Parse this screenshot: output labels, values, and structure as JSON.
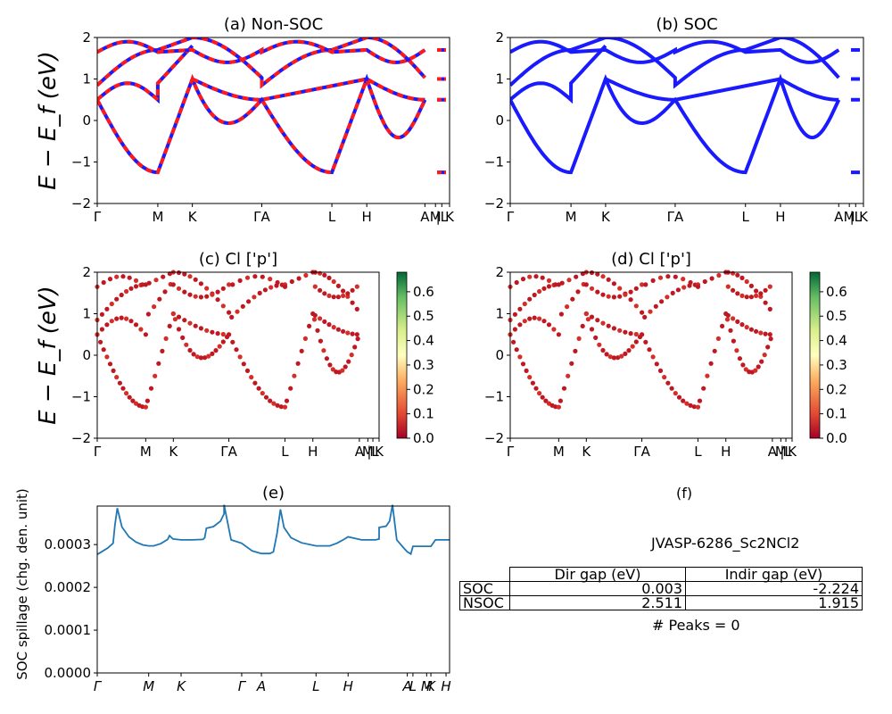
{
  "chart_data": [
    {
      "id": "a",
      "type": "line",
      "title": "(a) Non-SOC",
      "ylabel": "E − E_f (eV)",
      "ylim": [
        -2,
        2
      ],
      "yticks": [
        "2",
        "1",
        "0",
        "−1",
        "−2"
      ],
      "kpath": [
        {
          "label": "Γ",
          "x": 0.0
        },
        {
          "label": "M",
          "x": 0.172
        },
        {
          "label": "K",
          "x": 0.27
        },
        {
          "label": "ΓA",
          "x": 0.467
        },
        {
          "label": "L",
          "x": 0.666
        },
        {
          "label": "H",
          "x": 0.765
        },
        {
          "label": "A",
          "x": 0.93
        },
        {
          "label": "M",
          "x": 0.96
        },
        {
          "label": "|L",
          "x": 0.978
        },
        {
          "label": "K",
          "x": 1.0
        }
      ],
      "series": [
        {
          "color": "#1a1aff",
          "style": "solid"
        },
        {
          "color": "#ff1a1a",
          "style": "dashed"
        }
      ]
    },
    {
      "id": "b",
      "type": "line",
      "title": "(b) SOC",
      "ylim": [
        -2,
        2
      ],
      "yticks": [
        "2",
        "1",
        "0",
        "−1",
        "−2"
      ],
      "kpath": [
        {
          "label": "Γ",
          "x": 0.0
        },
        {
          "label": "M",
          "x": 0.172
        },
        {
          "label": "K",
          "x": 0.27
        },
        {
          "label": "ΓA",
          "x": 0.467
        },
        {
          "label": "L",
          "x": 0.666
        },
        {
          "label": "H",
          "x": 0.765
        },
        {
          "label": "A",
          "x": 0.93
        },
        {
          "label": "M",
          "x": 0.96
        },
        {
          "label": "|L",
          "x": 0.978
        },
        {
          "label": "K",
          "x": 1.0
        }
      ],
      "series": [
        {
          "color": "#1a1aff",
          "style": "solid"
        }
      ]
    },
    {
      "id": "c",
      "type": "scatter",
      "title": "(c)  Cl ['p']",
      "ylabel": "E − E_f (eV)",
      "ylim": [
        -2,
        2
      ],
      "yticks": [
        "2",
        "1",
        "0",
        "−1",
        "−2"
      ],
      "kpath": [
        {
          "label": "Γ",
          "x": 0.0
        },
        {
          "label": "M",
          "x": 0.172
        },
        {
          "label": "K",
          "x": 0.27
        },
        {
          "label": "ΓA",
          "x": 0.467
        },
        {
          "label": "L",
          "x": 0.666
        },
        {
          "label": "H",
          "x": 0.765
        },
        {
          "label": "A",
          "x": 0.93
        },
        {
          "label": "M",
          "x": 0.96
        },
        {
          "label": "|L",
          "x": 0.978
        },
        {
          "label": "K",
          "x": 1.0
        }
      ],
      "colorbar": {
        "ticks": [
          "0.6",
          "0.5",
          "0.4",
          "0.3",
          "0.2",
          "0.1",
          "0.0"
        ],
        "range": [
          0.0,
          0.68
        ]
      }
    },
    {
      "id": "d",
      "type": "scatter",
      "title": "(d) Cl ['p']",
      "ylim": [
        -2,
        2
      ],
      "yticks": [
        "2",
        "1",
        "0",
        "−1",
        "−2"
      ],
      "kpath": [
        {
          "label": "Γ",
          "x": 0.0
        },
        {
          "label": "M",
          "x": 0.172
        },
        {
          "label": "K",
          "x": 0.27
        },
        {
          "label": "ΓA",
          "x": 0.467
        },
        {
          "label": "L",
          "x": 0.666
        },
        {
          "label": "H",
          "x": 0.765
        },
        {
          "label": "A",
          "x": 0.93
        },
        {
          "label": "M",
          "x": 0.96
        },
        {
          "label": "|L",
          "x": 0.978
        },
        {
          "label": "K",
          "x": 1.0
        }
      ],
      "colorbar": {
        "ticks": [
          "0.6",
          "0.5",
          "0.4",
          "0.3",
          "0.2",
          "0.1",
          "0.0"
        ],
        "range": [
          0.0,
          0.68
        ]
      }
    },
    {
      "id": "e",
      "type": "line",
      "title": "(e)",
      "ylabel": "SOC spillage (chg. den. unit)",
      "ylim": [
        0.0,
        0.00039
      ],
      "yticks": [
        "0.0003",
        "0.0002",
        "0.0001",
        "0.0000"
      ],
      "kpath": [
        {
          "label": "Γ",
          "x": 0.0
        },
        {
          "label": "M",
          "x": 0.146
        },
        {
          "label": "K",
          "x": 0.238
        },
        {
          "label": "Γ",
          "x": 0.41
        },
        {
          "label": "A",
          "x": 0.466
        },
        {
          "label": "L",
          "x": 0.621
        },
        {
          "label": "H",
          "x": 0.712
        },
        {
          "label": "A",
          "x": 0.88
        },
        {
          "label": "L",
          "x": 0.896
        },
        {
          "label": "M",
          "x": 0.935
        },
        {
          "label": "K",
          "x": 0.947
        },
        {
          "label": "H",
          "x": 0.99
        }
      ],
      "series": [
        {
          "color": "#1f77b4",
          "x": [
            0.0,
            0.01,
            0.03,
            0.045,
            0.05,
            0.057,
            0.07,
            0.09,
            0.11,
            0.13,
            0.146,
            0.16,
            0.18,
            0.2,
            0.205,
            0.215,
            0.238,
            0.27,
            0.3,
            0.305,
            0.31,
            0.33,
            0.35,
            0.36,
            0.36,
            0.38,
            0.41,
            0.44,
            0.466,
            0.49,
            0.5,
            0.51,
            0.52,
            0.53,
            0.55,
            0.58,
            0.621,
            0.66,
            0.68,
            0.7,
            0.712,
            0.75,
            0.79,
            0.8,
            0.8,
            0.82,
            0.83,
            0.838,
            0.85,
            0.87,
            0.88,
            0.89,
            0.896,
            0.935,
            0.947,
            0.96,
            0.99,
            1.0
          ],
          "y": [
            0.000277,
            0.000282,
            0.000292,
            0.000303,
            0.000345,
            0.000385,
            0.000341,
            0.000318,
            0.000306,
            0.000299,
            0.000297,
            0.000297,
            0.000302,
            0.000312,
            0.000321,
            0.000313,
            0.000311,
            0.000311,
            0.000312,
            0.000316,
            0.000338,
            0.000342,
            0.000355,
            0.000372,
            0.000393,
            0.000311,
            0.000303,
            0.000285,
            0.000279,
            0.000279,
            0.000283,
            0.000325,
            0.000382,
            0.00034,
            0.000316,
            0.000304,
            0.000297,
            0.000297,
            0.000303,
            0.000312,
            0.000318,
            0.000311,
            0.000311,
            0.000313,
            0.00034,
            0.000343,
            0.000355,
            0.000393,
            0.000311,
            0.000292,
            0.000283,
            0.000278,
            0.000296,
            0.000296,
            0.000296,
            0.000311,
            0.000311,
            0.000311
          ]
        }
      ]
    }
  ],
  "panel_f": {
    "title": "(f)",
    "material": "JVASP-6286_Sc2NCl2",
    "table": {
      "columns": [
        "Dir gap (eV)",
        "Indir gap (eV)"
      ],
      "rows": [
        {
          "label": "SOC",
          "dir": "0.003",
          "indir": "-2.224"
        },
        {
          "label": "NSOC",
          "dir": "2.511",
          "indir": "1.915"
        }
      ]
    },
    "peaks": "# Peaks = 0"
  }
}
